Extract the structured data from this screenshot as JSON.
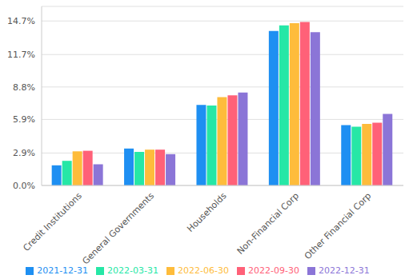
{
  "chart_data": {
    "type": "bar",
    "categories": [
      "Credit Institutions",
      "General Governments",
      "Households",
      "Non-Financial Corp",
      "Other Financial Corp"
    ],
    "series": [
      {
        "name": "2021-12-31",
        "color": "#1e8ff2",
        "values": [
          1.8,
          3.3,
          7.2,
          13.8,
          5.4
        ]
      },
      {
        "name": "2022-03-31",
        "color": "#26e7a6",
        "values": [
          2.2,
          3.0,
          7.15,
          14.3,
          5.25
        ]
      },
      {
        "name": "2022-06-30",
        "color": "#febc3b",
        "values": [
          3.05,
          3.2,
          7.9,
          14.5,
          5.5
        ]
      },
      {
        "name": "2022-09-30",
        "color": "#ff6178",
        "values": [
          3.1,
          3.2,
          8.05,
          14.6,
          5.6
        ]
      },
      {
        "name": "2022-12-31",
        "color": "#8b75d7",
        "values": [
          1.9,
          2.8,
          8.3,
          13.7,
          6.4
        ]
      }
    ],
    "ylim": [
      0,
      16
    ],
    "yticks": [
      {
        "value": 0,
        "label": "0.0%"
      },
      {
        "value": 2.9,
        "label": "2.9%"
      },
      {
        "value": 5.9,
        "label": "5.9%"
      },
      {
        "value": 8.8,
        "label": "8.8%"
      },
      {
        "value": 11.7,
        "label": "11.7%"
      },
      {
        "value": 14.7,
        "label": "14.7%"
      }
    ],
    "grid": true,
    "legend": "bottom"
  }
}
